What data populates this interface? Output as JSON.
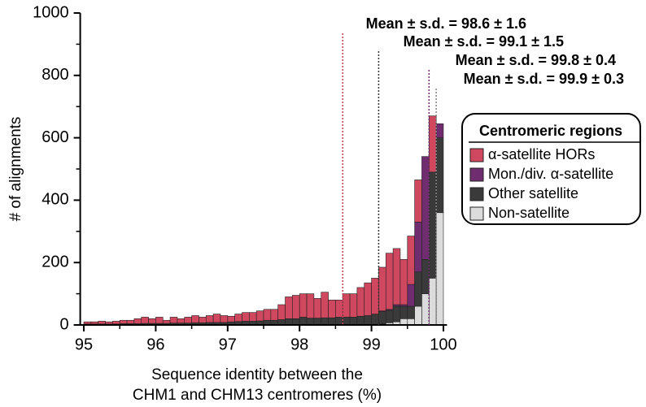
{
  "chart_data": {
    "type": "histogram",
    "xlabel": [
      "Sequence identity between the",
      "CHM1 and CHM13 centromeres (%)"
    ],
    "ylabel": "# of alignments",
    "bins": [
      95,
      95.1,
      95.2,
      95.3,
      95.4,
      95.5,
      95.6,
      95.7,
      95.8,
      95.9,
      96,
      96.1,
      96.2,
      96.3,
      96.4,
      96.5,
      96.6,
      96.7,
      96.8,
      96.9,
      97,
      97.1,
      97.2,
      97.3,
      97.4,
      97.5,
      97.6,
      97.7,
      97.8,
      97.9,
      98,
      98.1,
      98.2,
      98.3,
      98.4,
      98.5,
      98.6,
      98.7,
      98.8,
      98.9,
      99,
      99.1,
      99.2,
      99.3,
      99.4,
      99.5,
      99.6,
      99.7,
      99.8,
      99.9,
      100
    ],
    "series": [
      {
        "name": "Non-satellite",
        "color": "#dcdcdc",
        "values": [
          0,
          0,
          0,
          0,
          0,
          0,
          0,
          0,
          0,
          0,
          0,
          0,
          0,
          0,
          0,
          0,
          0,
          0,
          0,
          0,
          0,
          0,
          0,
          0,
          0,
          0,
          0,
          0,
          0,
          0,
          0,
          0,
          0,
          0,
          0,
          0,
          0,
          0,
          0,
          0,
          0,
          3,
          7,
          10,
          20,
          20,
          60,
          100,
          150,
          360
        ]
      },
      {
        "name": "Other satellite",
        "color": "#3a3a3a",
        "values": [
          3,
          3,
          3,
          3,
          3,
          4,
          4,
          4,
          5,
          5,
          5,
          5,
          6,
          6,
          6,
          7,
          7,
          8,
          8,
          8,
          10,
          11,
          12,
          12,
          13,
          15,
          15,
          17,
          20,
          20,
          25,
          22,
          22,
          23,
          23,
          25,
          25,
          25,
          28,
          30,
          35,
          40,
          40,
          50,
          40,
          40,
          110,
          110,
          340,
          240
        ]
      },
      {
        "name": "Mon./div. α-satellite",
        "color": "#6f2c6e",
        "values": [
          0,
          0,
          0,
          0,
          0,
          0,
          0,
          0,
          0,
          0,
          0,
          0,
          0,
          0,
          0,
          0,
          0,
          0,
          0,
          0,
          0,
          0,
          0,
          0,
          0,
          0,
          0,
          0,
          0,
          0,
          0,
          0,
          0,
          0,
          0,
          0,
          0,
          0,
          0,
          0,
          0,
          2,
          3,
          5,
          5,
          70,
          160,
          330,
          0,
          45
        ]
      },
      {
        "name": "α-satellite HORs",
        "color": "#d0485f",
        "values": [
          7,
          7,
          9,
          7,
          9,
          11,
          11,
          16,
          20,
          15,
          20,
          10,
          19,
          14,
          19,
          23,
          18,
          22,
          27,
          22,
          18,
          24,
          28,
          28,
          32,
          35,
          35,
          48,
          70,
          75,
          75,
          78,
          63,
          82,
          57,
          55,
          75,
          75,
          92,
          105,
          115,
          140,
          180,
          180,
          145,
          155,
          135,
          0,
          180,
          0
        ]
      }
    ],
    "legend_title": "Centromeric regions",
    "annotations": [
      {
        "text": "Mean ± s.d. = 98.6 ± 1.6",
        "x": 98.6,
        "color": "#c9405a"
      },
      {
        "text": "Mean ± s.d. = 99.1 ± 1.5",
        "x": 99.1,
        "color": "#333333"
      },
      {
        "text": "Mean ± s.d. = 99.8 ± 0.4",
        "x": 99.8,
        "color": "#6f2c6e"
      },
      {
        "text": "Mean ± s.d. = 99.9 ± 0.3",
        "x": 99.9,
        "color": "#888888"
      }
    ],
    "xlim": [
      94.95,
      100.05
    ],
    "xticks": [
      95,
      96,
      97,
      98,
      99,
      100
    ],
    "ylim": [
      0,
      1000
    ],
    "yticks": [
      0,
      200,
      400,
      600,
      800,
      1000
    ]
  }
}
